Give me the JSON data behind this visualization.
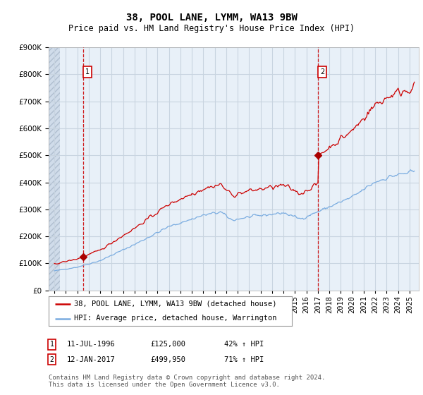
{
  "title": "38, POOL LANE, LYMM, WA13 9BW",
  "subtitle": "Price paid vs. HM Land Registry's House Price Index (HPI)",
  "ylim": [
    0,
    900000
  ],
  "yticks": [
    0,
    100000,
    200000,
    300000,
    400000,
    500000,
    600000,
    700000,
    800000,
    900000
  ],
  "background_color": "#ffffff",
  "plot_bg_color": "#e8f0f8",
  "hatch_bg_color": "#d0dcea",
  "grid_color": "#c8d4e0",
  "annotation1_label": "1",
  "annotation1_date": "11-JUL-1996",
  "annotation1_price": 125000,
  "annotation1_price_str": "£125,000",
  "annotation1_pct": "42% ↑ HPI",
  "annotation2_label": "2",
  "annotation2_date": "12-JAN-2017",
  "annotation2_price": 499950,
  "annotation2_price_str": "£499,950",
  "annotation2_pct": "71% ↑ HPI",
  "legend_line1": "38, POOL LANE, LYMM, WA13 9BW (detached house)",
  "legend_line2": "HPI: Average price, detached house, Warrington",
  "footer": "Contains HM Land Registry data © Crown copyright and database right 2024.\nThis data is licensed under the Open Government Licence v3.0.",
  "sale_color": "#cc0000",
  "hpi_color": "#7aace0",
  "dot_color": "#aa0000",
  "vline_color": "#cc0000",
  "ann_box_color": "#cc0000",
  "title_fontsize": 10,
  "subtitle_fontsize": 8.5,
  "tick_fontsize": 7.5,
  "legend_fontsize": 7.5,
  "footer_fontsize": 6.5,
  "sale1_year": 1996.527,
  "sale2_year": 2017.03
}
